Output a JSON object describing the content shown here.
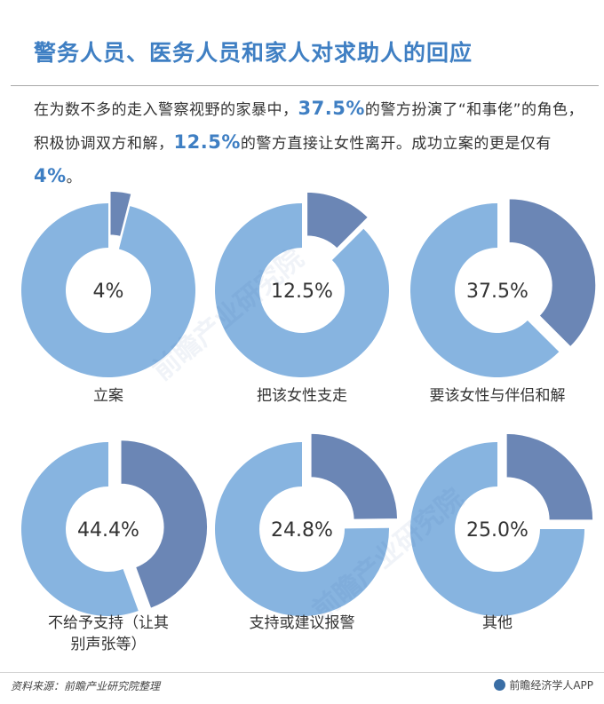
{
  "title": "警务人员、医务人员和家人对求助人的回应",
  "intro": {
    "t1": "在为数不多的走入警察视野的家暴中，",
    "h1": "37.5%",
    "t2": "的警方扮演了“和事佬”的角色，积极协调双方和解，",
    "h2": "12.5%",
    "t3": "的警方直接让女性离开。成功立案的更是仅有",
    "h3": "4%",
    "t4": "。"
  },
  "colors": {
    "title": "#3f7fc3",
    "donut_base": "#87b4e0",
    "donut_highlight": "#6b86b5",
    "text": "#333333"
  },
  "chart_data": [
    {
      "type": "pie",
      "category": "立案",
      "value": 4,
      "value_label": "4%"
    },
    {
      "type": "pie",
      "category": "把该女性支走",
      "value": 12.5,
      "value_label": "12.5%"
    },
    {
      "type": "pie",
      "category": "要该女性与伴侣和解",
      "value": 37.5,
      "value_label": "37.5%"
    },
    {
      "type": "pie",
      "category": "不给予支持（让其别声张等）",
      "value": 44.4,
      "value_label": "44.4%"
    },
    {
      "type": "pie",
      "category": "支持或建议报警",
      "value": 24.8,
      "value_label": "24.8%"
    },
    {
      "type": "pie",
      "category": "其他",
      "value": 25.0,
      "value_label": "25.0%"
    }
  ],
  "footer": {
    "source": "资料来源：前瞻产业研究院整理",
    "brand": "前瞻经济学人APP"
  },
  "watermark_text": "前瞻产业研究院"
}
